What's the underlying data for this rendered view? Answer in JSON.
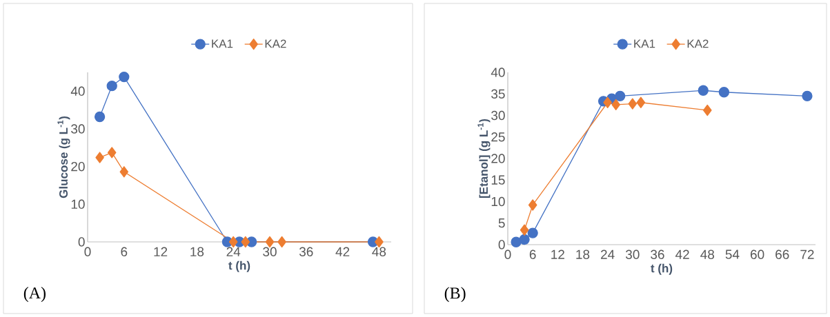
{
  "chart_data": [
    {
      "type": "line",
      "xlabel": "t (h)",
      "ylabel": "Glucose  (g L$^{-1}$)",
      "xlim": [
        0,
        50
      ],
      "ylim": [
        0,
        45
      ],
      "xticks": [
        0,
        6,
        12,
        18,
        24,
        30,
        36,
        42,
        48
      ],
      "yticks": [
        0,
        10,
        20,
        30,
        40
      ],
      "legend": "top",
      "annotations": [
        "(A)"
      ],
      "series": [
        {
          "name": "KA1",
          "color": "#4472c4",
          "marker": "circle",
          "x": [
            2,
            4,
            6,
            23,
            25,
            27,
            47
          ],
          "values": [
            33.2,
            41.4,
            43.8,
            0,
            0,
            0,
            0
          ]
        },
        {
          "name": "KA2",
          "color": "#ed7d31",
          "marker": "diamond",
          "x": [
            2,
            4,
            6,
            24,
            26,
            30,
            32,
            48
          ],
          "values": [
            22.4,
            23.7,
            18.6,
            0,
            0,
            0,
            0,
            0
          ]
        }
      ]
    },
    {
      "type": "line",
      "xlabel": "t (h)",
      "ylabel": "[Etanol] (g L$^{-1}$)",
      "xlim": [
        0,
        74
      ],
      "ylim": [
        0,
        40
      ],
      "xticks": [
        0,
        6,
        12,
        18,
        24,
        30,
        36,
        42,
        48,
        54,
        60,
        66,
        72
      ],
      "yticks": [
        0,
        5,
        10,
        15,
        20,
        25,
        30,
        35,
        40
      ],
      "legend": "top",
      "annotations": [
        "(B)"
      ],
      "series": [
        {
          "name": "KA1",
          "color": "#4472c4",
          "marker": "circle",
          "x": [
            2,
            4,
            6,
            23,
            25,
            27,
            47,
            52,
            72
          ],
          "values": [
            0.6,
            1.2,
            2.7,
            33.3,
            33.9,
            34.5,
            35.8,
            35.4,
            34.5
          ]
        },
        {
          "name": "KA2",
          "color": "#ed7d31",
          "marker": "diamond",
          "x": [
            4,
            6,
            24,
            26,
            30,
            32,
            48
          ],
          "values": [
            3.4,
            9.2,
            33.0,
            32.5,
            32.7,
            33.0,
            31.2
          ]
        }
      ]
    }
  ]
}
